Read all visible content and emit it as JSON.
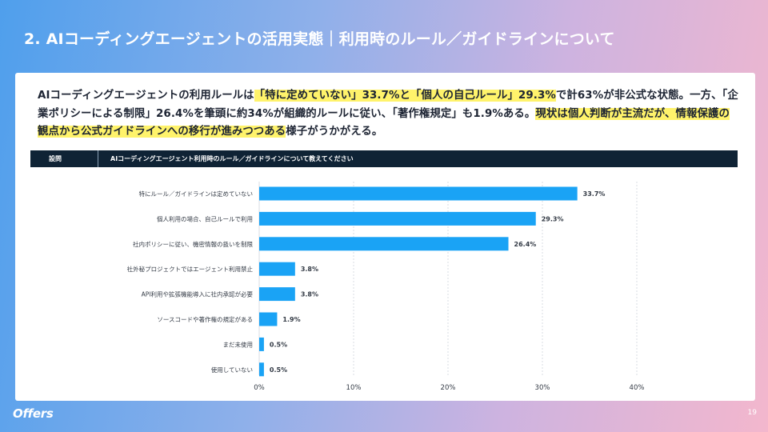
{
  "slide": {
    "title": "2. AIコーディングエージェントの活用実態｜利用時のルール／ガイドラインについて",
    "page_number": "19",
    "logo_text": "Offers"
  },
  "summary": {
    "seg1": "AIコーディングエージェントの利用ルールは",
    "seg2": "「特に定めていない」33.7%と「個人の自己ルール」29.3%",
    "seg3": "で計63%が非公式な状態。一方、「企業ポリシーによる制限」26.4%を筆頭に約34%が組織的ルールに従い、「著作権規定」も1.9%ある。",
    "seg4": "現状は個人判断が主流だが、情報保護の観点から公式ガイドラインへの移行が進みつつある",
    "seg5": "様子がうかがえる。"
  },
  "question": {
    "label": "設問",
    "text": "AIコーディングエージェント利用時のルール／ガイドラインについて教えてください"
  },
  "colors": {
    "bar": "#1aa3f5",
    "grid": "#d9dde3",
    "label": "#333a45"
  },
  "chart_data": {
    "type": "bar",
    "orientation": "horizontal",
    "categories": [
      "特にルール／ガイドラインは定めていない",
      "個人利用の場合、自己ルールで利用",
      "社内ポリシーに従い、機密情報の扱いを制限",
      "社外秘プロジェクトではエージェント利用禁止",
      "API利用や拡張機能導入に社内承認が必要",
      "ソースコードや著作権の規定がある",
      "まだ未使用",
      "使用していない"
    ],
    "values": [
      33.7,
      29.3,
      26.4,
      3.8,
      3.8,
      1.9,
      0.5,
      0.5
    ],
    "value_labels": [
      "33.7%",
      "29.3%",
      "26.4%",
      "3.8%",
      "3.8%",
      "1.9%",
      "0.5%",
      "0.5%"
    ],
    "xlim": [
      0,
      40
    ],
    "xticks": [
      0,
      10,
      20,
      30,
      40
    ],
    "xtick_labels": [
      "0%",
      "10%",
      "20%",
      "30%",
      "40%"
    ],
    "grid": true,
    "unit": "%"
  }
}
